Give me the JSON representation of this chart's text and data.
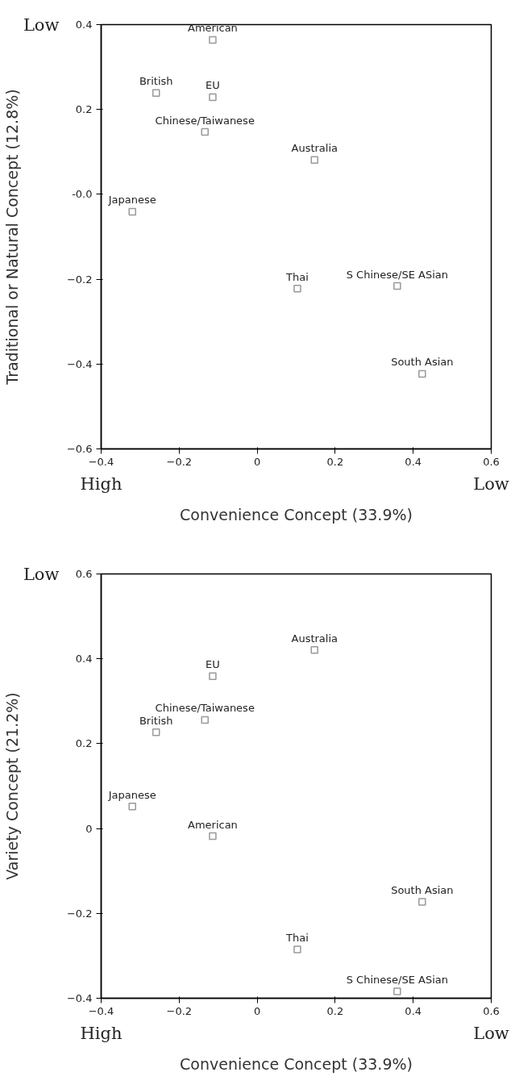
{
  "chart_data": [
    {
      "type": "scatter",
      "xlabel": "Convenience Concept (33.9%)",
      "ylabel": "Traditional or Natural Concept (12.8%)",
      "marker": "square",
      "xlim": [
        -0.4,
        0.6
      ],
      "xticks": [
        -0.4,
        -0.2,
        0.0,
        0.2,
        0.4,
        0.6
      ],
      "ylim": [
        -0.6,
        0.4
      ],
      "yticks": [
        -0.6,
        -0.4,
        -0.2,
        {
          "value": 0,
          "label": "-0.0"
        },
        0.2,
        0.4
      ],
      "series": [
        {
          "color": "#999999",
          "x": [
            -0.114,
            -0.259,
            -0.114,
            -0.134,
            0.147,
            -0.32,
            0.103,
            0.359,
            0.423
          ],
          "values": [
            0.364,
            0.239,
            0.229,
            0.147,
            0.081,
            -0.041,
            -0.222,
            -0.216,
            -0.423
          ]
        }
      ],
      "annotations": [
        "Low",
        "High",
        "Low",
        {
          "text": "American",
          "x": -0.114,
          "y": 0.364
        },
        {
          "text": "British",
          "x": -0.259,
          "y": 0.239
        },
        {
          "text": "EU",
          "x": -0.114,
          "y": 0.229
        },
        {
          "text": "Chinese/Taiwanese",
          "x": -0.134,
          "y": 0.147
        },
        {
          "text": "Australia",
          "x": 0.147,
          "y": 0.081
        },
        {
          "text": "Japanese",
          "x": -0.32,
          "y": -0.041
        },
        {
          "text": "Thai",
          "x": 0.103,
          "y": -0.222
        },
        {
          "text": "S Chinese/SE ASian",
          "x": 0.359,
          "y": -0.216
        },
        {
          "text": "South Asian",
          "x": 0.423,
          "y": -0.423
        }
      ]
    },
    {
      "type": "scatter",
      "xlabel": "Convenience Concept (33.9%)",
      "ylabel": "Variety Concept (21.2%)",
      "marker": "square",
      "xlim": [
        -0.4,
        0.6
      ],
      "xticks": [
        -0.4,
        -0.2,
        0.0,
        0.2,
        0.4,
        0.6
      ],
      "ylim": [
        -0.4,
        0.6
      ],
      "yticks": [
        -0.4,
        -0.2,
        0.0,
        0.2,
        0.4,
        0.6
      ],
      "series": [
        {
          "color": "#999999",
          "x": [
            0.147,
            -0.114,
            -0.134,
            -0.259,
            -0.32,
            -0.114,
            0.423,
            0.103,
            0.359
          ],
          "values": [
            0.421,
            0.359,
            0.256,
            0.227,
            0.052,
            -0.018,
            -0.173,
            -0.285,
            -0.384
          ]
        }
      ],
      "annotations": [
        "Low",
        "High",
        "Low",
        {
          "text": "Australia",
          "x": 0.147,
          "y": 0.421
        },
        {
          "text": "EU",
          "x": -0.114,
          "y": 0.359
        },
        {
          "text": "Chinese/Taiwanese",
          "x": -0.134,
          "y": 0.256
        },
        {
          "text": "British",
          "x": -0.259,
          "y": 0.227
        },
        {
          "text": "Japanese",
          "x": -0.32,
          "y": 0.052
        },
        {
          "text": "American",
          "x": -0.114,
          "y": -0.018
        },
        {
          "text": "South Asian",
          "x": 0.423,
          "y": -0.173
        },
        {
          "text": "Thai",
          "x": 0.103,
          "y": -0.285
        },
        {
          "text": "S Chinese/SE ASian",
          "x": 0.359,
          "y": -0.384
        }
      ]
    }
  ]
}
